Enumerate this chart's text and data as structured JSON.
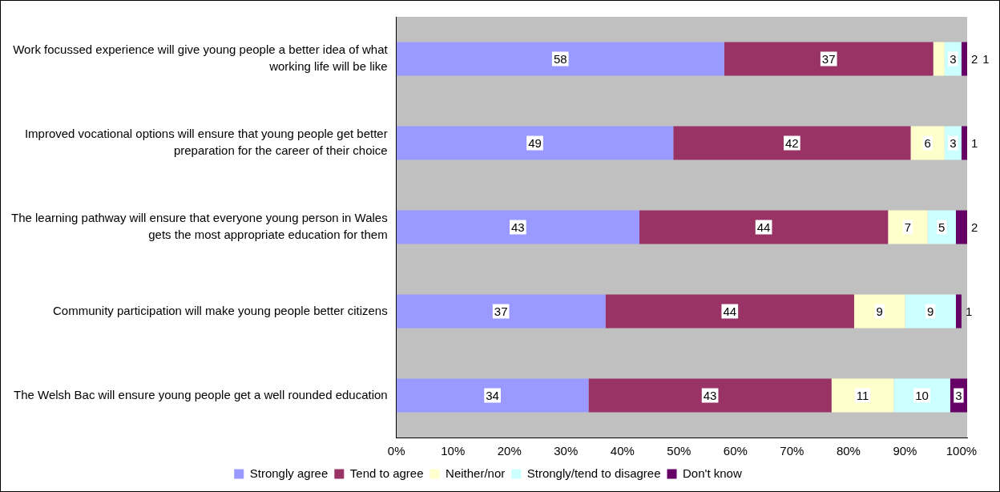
{
  "chart_data": {
    "type": "bar",
    "orientation": "horizontal",
    "stacked": true,
    "data_labels": true,
    "legend": "bottom",
    "grid": false,
    "categories": [
      "Work focussed experience will give young people a better idea of what working life will be like",
      "Improved vocational options will ensure that young people get better preparation for the career of their choice",
      "The learning pathway will ensure that everyone young person in Wales gets the most appropriate education for them",
      "Community participation will make young people better citizens",
      "The Welsh Bac will ensure young people get a well rounded education"
    ],
    "series": [
      {
        "name": "Strongly agree",
        "color": "#9999ff",
        "values": [
          58,
          49,
          43,
          37,
          34
        ]
      },
      {
        "name": "Tend to agree",
        "color": "#993366",
        "values": [
          37,
          42,
          44,
          44,
          43
        ]
      },
      {
        "name": "Neither/nor",
        "color": "#ffffcc",
        "values": [
          2,
          6,
          7,
          9,
          11
        ]
      },
      {
        "name": "Strongly/tend to disagree",
        "color": "#ccffff",
        "values": [
          3,
          3,
          5,
          9,
          10
        ]
      },
      {
        "name": "Don't know",
        "color": "#660066",
        "values": [
          1,
          1,
          2,
          1,
          3
        ]
      }
    ],
    "xlim": [
      0,
      101
    ],
    "xticks": [
      {
        "value": 0,
        "label": "0%"
      },
      {
        "value": 10,
        "label": "10%"
      },
      {
        "value": 20,
        "label": "20%"
      },
      {
        "value": 30,
        "label": "30%"
      },
      {
        "value": 40,
        "label": "40%"
      },
      {
        "value": 50,
        "label": "50%"
      },
      {
        "value": 60,
        "label": "60%"
      },
      {
        "value": 70,
        "label": "70%"
      },
      {
        "value": 80,
        "label": "80%"
      },
      {
        "value": 90,
        "label": "90%"
      },
      {
        "value": 100,
        "label": "100%"
      }
    ]
  }
}
